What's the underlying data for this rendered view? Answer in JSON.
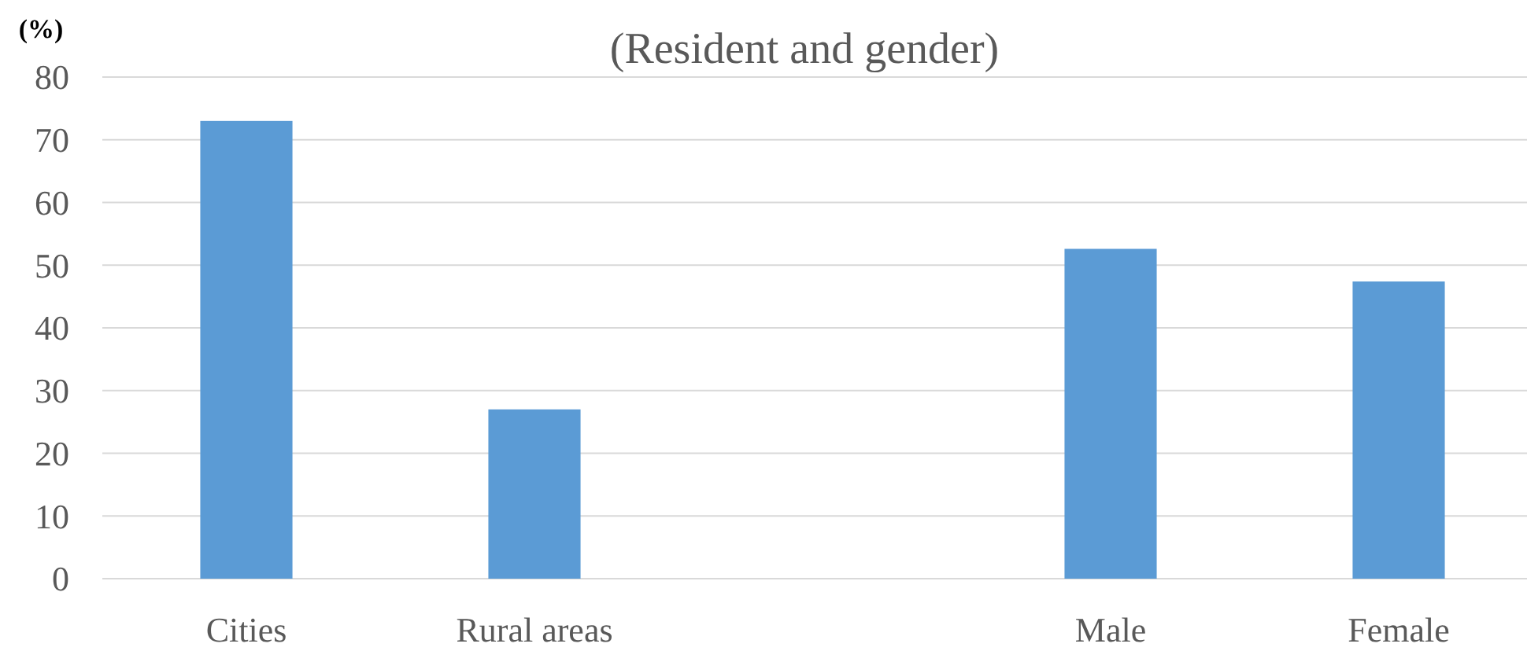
{
  "chart_data": {
    "type": "bar",
    "title": "(Resident and gender)",
    "ylabel": "(%)",
    "categories": [
      "Cities",
      "Rural areas",
      null,
      "Male",
      "Female"
    ],
    "values": [
      73,
      27,
      null,
      52.6,
      47.4
    ],
    "color": "#5b9bd5",
    "ylim": [
      0,
      80
    ],
    "yticks": [
      0,
      10,
      20,
      30,
      40,
      50,
      60,
      70,
      80
    ],
    "grid": "y"
  }
}
